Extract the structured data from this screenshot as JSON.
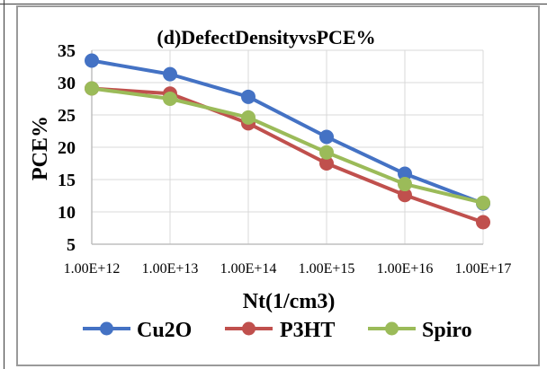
{
  "chart_data": {
    "type": "line",
    "title": "(d)DefectDensityvsPCE%",
    "xlabel": "Nt(1/cm3)",
    "ylabel": "PCE%",
    "categories": [
      "1.00E+12",
      "1.00E+13",
      "1.00E+14",
      "1.00E+15",
      "1.00E+16",
      "1.00E+17"
    ],
    "y_ticks": [
      "5",
      "10",
      "15",
      "20",
      "25",
      "30",
      "35"
    ],
    "ylim": [
      5,
      35
    ],
    "grid": true,
    "legend_position": "bottom",
    "series": [
      {
        "name": "Cu2O",
        "color": "#4472C4",
        "values": [
          33.4,
          31.3,
          27.8,
          21.6,
          15.9,
          11.3
        ]
      },
      {
        "name": "P3HT",
        "color": "#C0504D",
        "values": [
          29.1,
          28.3,
          23.7,
          17.5,
          12.6,
          8.4
        ]
      },
      {
        "name": "Spiro",
        "color": "#9BBB59",
        "values": [
          29.1,
          27.5,
          24.6,
          19.2,
          14.3,
          11.4
        ]
      }
    ]
  }
}
